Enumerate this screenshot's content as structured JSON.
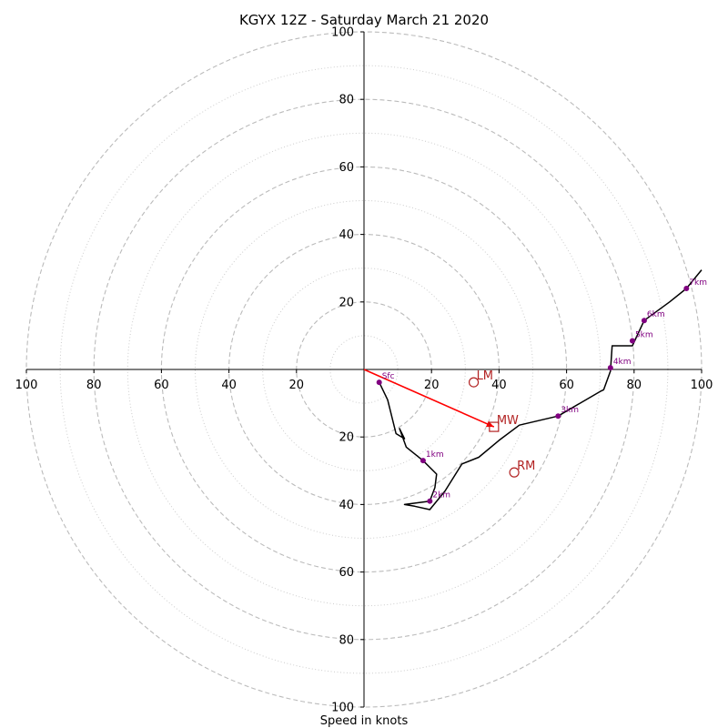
{
  "chart_data": {
    "type": "line",
    "title": "KGYX 12Z - Saturday March 21 2020",
    "xlabel": "Speed in knots",
    "ylabel": "",
    "xlim": [
      -100,
      100
    ],
    "ylim": [
      -100,
      100
    ],
    "ring_labels": [
      "20",
      "40",
      "60",
      "80",
      "100"
    ],
    "ring_values": [
      20,
      40,
      60,
      80,
      100
    ],
    "minor_rings": [
      10,
      30,
      50,
      70,
      90
    ],
    "grid": true,
    "hodograph": {
      "name": "hodograph",
      "color": "#000000",
      "points": [
        [
          4.5,
          -3.8
        ],
        [
          7,
          -9
        ],
        [
          9.5,
          -19
        ],
        [
          12,
          -20.5
        ],
        [
          10.5,
          -17.5
        ],
        [
          12.5,
          -23
        ],
        [
          17.5,
          -27
        ],
        [
          21.5,
          -31
        ],
        [
          21,
          -35
        ],
        [
          19.5,
          -39
        ],
        [
          12,
          -40
        ],
        [
          15,
          -40.5
        ],
        [
          19.5,
          -41.5
        ],
        [
          24,
          -36
        ],
        [
          29,
          -28
        ],
        [
          34,
          -26
        ],
        [
          40,
          -21
        ],
        [
          46,
          -16.5
        ],
        [
          57.5,
          -13.8
        ],
        [
          64,
          -10
        ],
        [
          70,
          -6.5
        ],
        [
          71,
          -6
        ],
        [
          73,
          -0.5
        ],
        [
          73.5,
          7
        ],
        [
          79.5,
          7
        ],
        [
          83,
          14.5
        ],
        [
          90.5,
          20
        ],
        [
          95.5,
          24
        ],
        [
          100,
          29.5
        ]
      ]
    },
    "height_markers": [
      {
        "label": "Sfc",
        "x": 4.5,
        "y": -3.8
      },
      {
        "label": "1km",
        "x": 17.5,
        "y": -27
      },
      {
        "label": "2km",
        "x": 19.5,
        "y": -39
      },
      {
        "label": "3km",
        "x": 57.5,
        "y": -13.8
      },
      {
        "label": "4km",
        "x": 73,
        "y": 0.5
      },
      {
        "label": "5km",
        "x": 79.5,
        "y": 8.5
      },
      {
        "label": "6km",
        "x": 83,
        "y": 14.5
      },
      {
        "label": "7km",
        "x": 95.5,
        "y": 24
      }
    ],
    "storm_motions": [
      {
        "label": "LM",
        "x": 32.5,
        "y": -3.8,
        "marker": "circle"
      },
      {
        "label": "MW",
        "x": 38.5,
        "y": -17,
        "marker": "square"
      },
      {
        "label": "RM",
        "x": 44.5,
        "y": -30.5,
        "marker": "circle"
      }
    ],
    "shear_vector": {
      "x0": 0,
      "y0": 0,
      "x1": 38.5,
      "y1": -17,
      "color": "#ff0000"
    },
    "colors": {
      "trace": "#000000",
      "markers": "#800080",
      "storm_motion": "#b22222",
      "shear_vector": "#ff0000",
      "ring_major": "#bbbbbb",
      "ring_minor": "#cccccc",
      "axes": "#000000"
    }
  }
}
